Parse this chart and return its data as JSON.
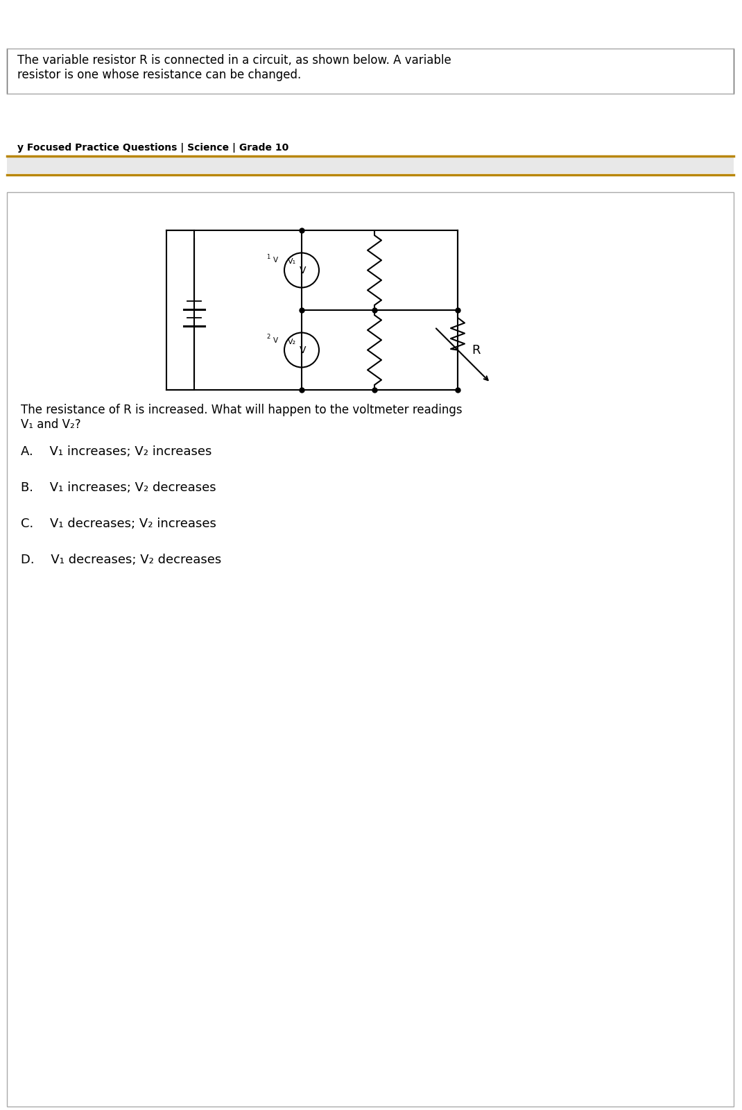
{
  "bg_color": "#ffffff",
  "border_color": "#000000",
  "title_text": "The variable resistor R is connected in a circuit, as shown below. A variable\nresistor is one whose resistance can be changed.",
  "footer_text": "y Focused Practice Questions | Science | Grade 10",
  "question_text": "The resistance of R is increased. What will happen to the voltmeter readings\nV₁ and V₂?",
  "options": [
    "A.  V₁ increases; V₂ increases",
    "B.  V₁ increases; V₂ decreases",
    "C.  V₁ decreases; V₂ increases",
    "D.  V₁ decreases; V₂ decreases"
  ],
  "gold_line_color": "#b8860b",
  "gray_band_color": "#e8e8e8",
  "footer_font_size": 10,
  "title_font_size": 12,
  "question_font_size": 12,
  "option_font_size": 13
}
